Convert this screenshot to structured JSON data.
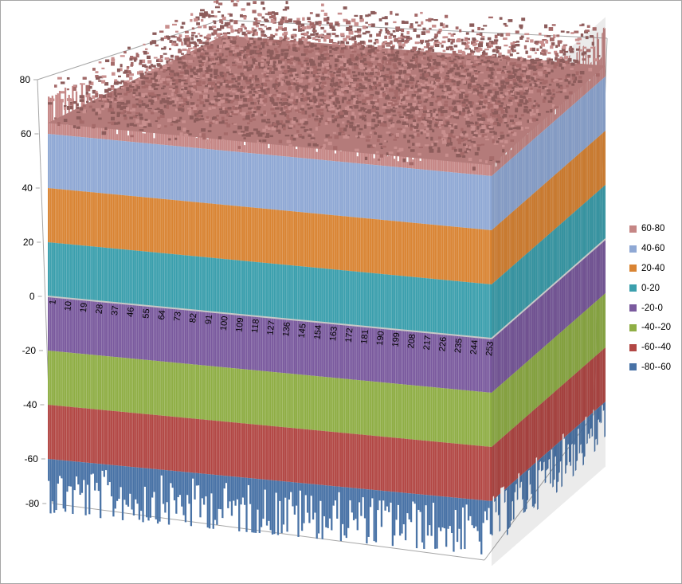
{
  "chart_data": {
    "type": "surface",
    "title": "",
    "zlim": [
      -80,
      80
    ],
    "z_ticks": [
      "80",
      "60",
      "40",
      "20",
      "0",
      "-20",
      "-40",
      "-60",
      "-80"
    ],
    "x_categories": [
      "1",
      "10",
      "19",
      "28",
      "37",
      "46",
      "55",
      "64",
      "73",
      "82",
      "91",
      "100",
      "109",
      "118",
      "127",
      "136",
      "145",
      "154",
      "163",
      "172",
      "181",
      "190",
      "199",
      "208",
      "217",
      "226",
      "235",
      "244",
      "253"
    ],
    "y_depth_points": 256,
    "surface_values_summary": "noisy surface spanning roughly -82 to 80 along every series",
    "bands": [
      {
        "name": "60-80",
        "range": [
          60,
          80
        ],
        "color": "#C58685"
      },
      {
        "name": "40-60",
        "range": [
          40,
          60
        ],
        "color": "#8FA8D4"
      },
      {
        "name": "20-40",
        "range": [
          20,
          40
        ],
        "color": "#D98433"
      },
      {
        "name": "0-20",
        "range": [
          0,
          20
        ],
        "color": "#3B9FAD"
      },
      {
        "name": "-20-0",
        "range": [
          -20,
          0
        ],
        "color": "#7A5A9E"
      },
      {
        "name": "-40--20",
        "range": [
          -40,
          -20
        ],
        "color": "#8FAE45"
      },
      {
        "name": "-60--40",
        "range": [
          -60,
          -40
        ],
        "color": "#B24744"
      },
      {
        "name": "-80--60",
        "range": [
          -80,
          -60
        ],
        "color": "#4872A6"
      }
    ],
    "legend_position": "right",
    "grid": false
  }
}
